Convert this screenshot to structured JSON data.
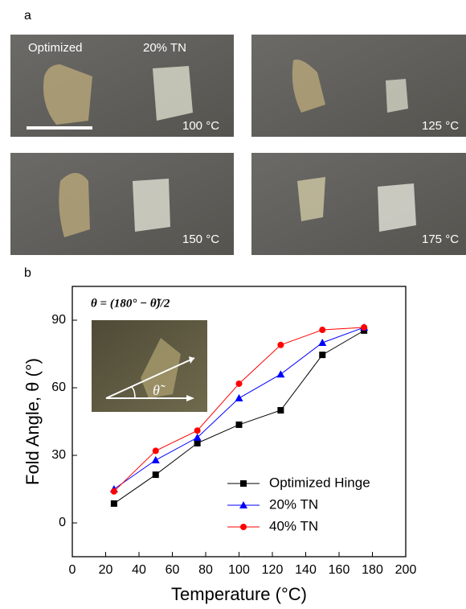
{
  "panel_a": {
    "label": "a",
    "sample_labels": [
      "Optimized",
      "20% TN"
    ],
    "temperatures": [
      "100 °C",
      "125 °C",
      "150 °C",
      "175 °C"
    ]
  },
  "chart_data": {
    "type": "line",
    "panel_label": "b",
    "x_label": "Temperature (°C)",
    "y_label": "Fold Angle, θ (°)",
    "inset_formula": "θ = (180° − θ̃)/2",
    "inset_angle_label": "θ̃",
    "x": [
      25,
      50,
      75,
      100,
      125,
      150,
      175
    ],
    "series": [
      {
        "name": "Optimized Hinge",
        "color": "#000000",
        "marker": "square",
        "values": [
          8.6,
          21.4,
          35.4,
          43.6,
          50,
          74.6,
          85.4
        ]
      },
      {
        "name": "20% TN",
        "color": "#0000ff",
        "marker": "triangle",
        "values": [
          15,
          27.9,
          37.9,
          55.4,
          66,
          80,
          86.8
        ]
      },
      {
        "name": "40% TN",
        "color": "#ff0000",
        "marker": "circle",
        "values": [
          14,
          32,
          41,
          61.8,
          79,
          85.7,
          86.8
        ]
      }
    ],
    "xlim": [
      0,
      200
    ],
    "xticks": [
      0,
      20,
      40,
      60,
      80,
      100,
      120,
      140,
      160,
      180,
      200
    ],
    "ylim": [
      -15,
      105
    ],
    "yticks": [
      0,
      30,
      60,
      90
    ],
    "legend": "lower right"
  }
}
